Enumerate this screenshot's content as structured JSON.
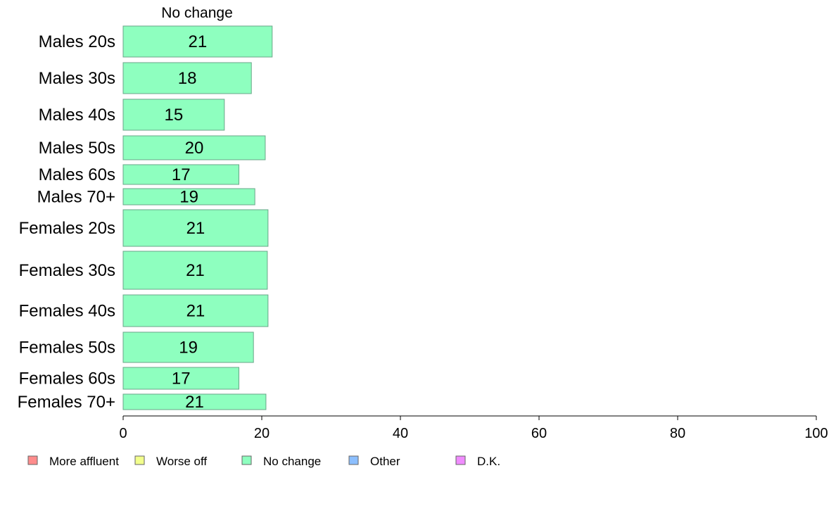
{
  "chart_data": {
    "type": "bar",
    "orientation": "horizontal",
    "column_header": "No change",
    "categories": [
      "Males 20s",
      "Males 30s",
      "Males 40s",
      "Males 50s",
      "Males 60s",
      "Males 70+",
      "Females 20s",
      "Females 30s",
      "Females 40s",
      "Females 50s",
      "Females 60s",
      "Females 70+"
    ],
    "series": [
      {
        "name": "No change",
        "color": "#8effbf",
        "values": [
          21.5,
          18.5,
          14.6,
          20.5,
          16.7,
          19.0,
          20.9,
          20.8,
          20.9,
          18.8,
          16.7,
          20.6
        ],
        "labels": [
          "21",
          "18",
          "15",
          "20",
          "17",
          "19",
          "21",
          "21",
          "21",
          "19",
          "17",
          "21"
        ]
      }
    ],
    "xlim": [
      0,
      100
    ],
    "xticks": [
      "0",
      "20",
      "40",
      "60",
      "80",
      "100"
    ],
    "legend": {
      "placement": "bottom",
      "items": [
        {
          "label": "More affluent",
          "color": "#ff8c8c"
        },
        {
          "label": "Worse off",
          "color": "#f2ff8c"
        },
        {
          "label": "No change",
          "color": "#8effbf"
        },
        {
          "label": "Other",
          "color": "#8cbfff"
        },
        {
          "label": "D.K.",
          "color": "#f08cff"
        }
      ]
    },
    "grid": false
  }
}
